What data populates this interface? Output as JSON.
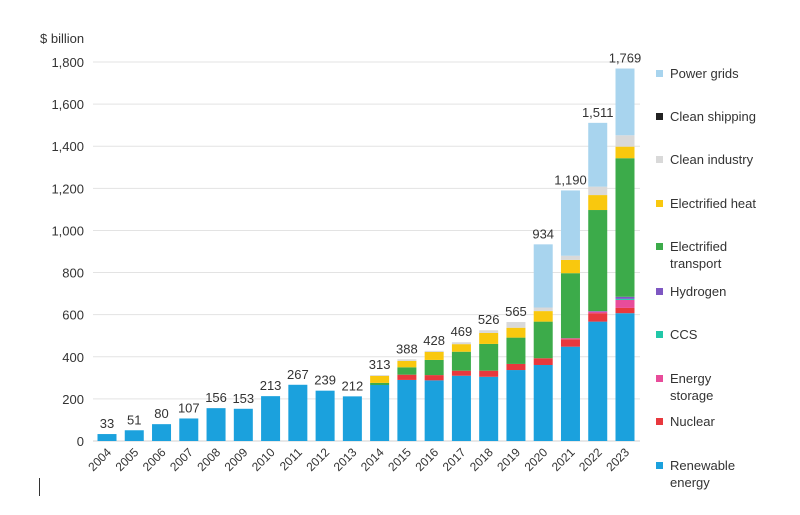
{
  "chart_data": {
    "type": "bar",
    "stacked": true,
    "title": "",
    "ylabel": "$ billion",
    "xlabel": "",
    "ylim": [
      0,
      1800
    ],
    "yticks": [
      0,
      200,
      400,
      600,
      800,
      1000,
      1200,
      1400,
      1600,
      1800
    ],
    "ytick_labels": [
      "0",
      "200",
      "400",
      "600",
      "800",
      "1,000",
      "1,200",
      "1,400",
      "1,600",
      "1,800"
    ],
    "grid": true,
    "legend_position": "right",
    "categories": [
      "2004",
      "2005",
      "2006",
      "2007",
      "2008",
      "2009",
      "2010",
      "2011",
      "2012",
      "2013",
      "2014",
      "2015",
      "2016",
      "2017",
      "2018",
      "2019",
      "2020",
      "2021",
      "2022",
      "2023"
    ],
    "totals": [
      33,
      51,
      80,
      107,
      156,
      153,
      213,
      267,
      239,
      212,
      313,
      388,
      428,
      469,
      526,
      565,
      934,
      1190,
      1511,
      1769
    ],
    "total_labels": [
      "33",
      "51",
      "80",
      "107",
      "156",
      "153",
      "213",
      "267",
      "239",
      "212",
      "313",
      "388",
      "428",
      "469",
      "526",
      "565",
      "934",
      "1,190",
      "1,511",
      "1,769"
    ],
    "series": [
      {
        "name": "Renewable energy",
        "color": "#1BA1DD",
        "values": [
          33,
          51,
          80,
          107,
          156,
          153,
          213,
          267,
          239,
          212,
          266,
          290,
          288,
          310,
          305,
          337,
          361,
          448,
          567,
          607
        ]
      },
      {
        "name": "Nuclear",
        "color": "#E8383D",
        "values": [
          0,
          0,
          0,
          0,
          0,
          0,
          0,
          0,
          0,
          0,
          0,
          25,
          25,
          24,
          29,
          29,
          32,
          35,
          40,
          25
        ]
      },
      {
        "name": "Energy storage",
        "color": "#E84C9A",
        "values": [
          0,
          0,
          0,
          0,
          0,
          0,
          0,
          0,
          0,
          0,
          0,
          0,
          0,
          0,
          0,
          0,
          0,
          5,
          7,
          38
        ]
      },
      {
        "name": "CCS",
        "color": "#21C7A8",
        "values": [
          0,
          0,
          0,
          0,
          0,
          0,
          0,
          0,
          0,
          0,
          0,
          0,
          0,
          0,
          0,
          0,
          0,
          0,
          0,
          5
        ]
      },
      {
        "name": "Hydrogen",
        "color": "#7E57C2",
        "values": [
          0,
          0,
          0,
          0,
          0,
          0,
          0,
          0,
          0,
          0,
          0,
          0,
          0,
          0,
          0,
          0,
          0,
          0,
          3,
          10
        ]
      },
      {
        "name": "Electrified transport",
        "color": "#3CAB4A",
        "values": [
          0,
          0,
          0,
          0,
          0,
          0,
          0,
          0,
          0,
          0,
          10,
          35,
          72,
          90,
          127,
          125,
          174,
          309,
          480,
          658
        ]
      },
      {
        "name": "Electrified heat",
        "color": "#F9C80E",
        "values": [
          0,
          0,
          0,
          0,
          0,
          0,
          0,
          0,
          0,
          0,
          33,
          30,
          38,
          36,
          52,
          47,
          50,
          63,
          71,
          55
        ]
      },
      {
        "name": "Clean industry",
        "color": "#D9D9D9",
        "values": [
          0,
          0,
          0,
          0,
          0,
          0,
          0,
          0,
          0,
          0,
          4,
          8,
          5,
          9,
          13,
          27,
          17,
          20,
          40,
          54
        ]
      },
      {
        "name": "Clean shipping",
        "color": "#222222",
        "values": [
          0,
          0,
          0,
          0,
          0,
          0,
          0,
          0,
          0,
          0,
          0,
          0,
          0,
          0,
          0,
          0,
          0,
          0,
          0,
          0
        ]
      },
      {
        "name": "Power grids",
        "color": "#A8D4EE",
        "values": [
          0,
          0,
          0,
          0,
          0,
          0,
          0,
          0,
          0,
          0,
          0,
          0,
          0,
          0,
          0,
          0,
          300,
          310,
          303,
          317
        ]
      }
    ],
    "legend_order": [
      "Power grids",
      "Clean shipping",
      "Clean industry",
      "Electrified heat",
      "Electrified transport",
      "Hydrogen",
      "CCS",
      "Energy storage",
      "Nuclear",
      "Renewable energy"
    ]
  }
}
